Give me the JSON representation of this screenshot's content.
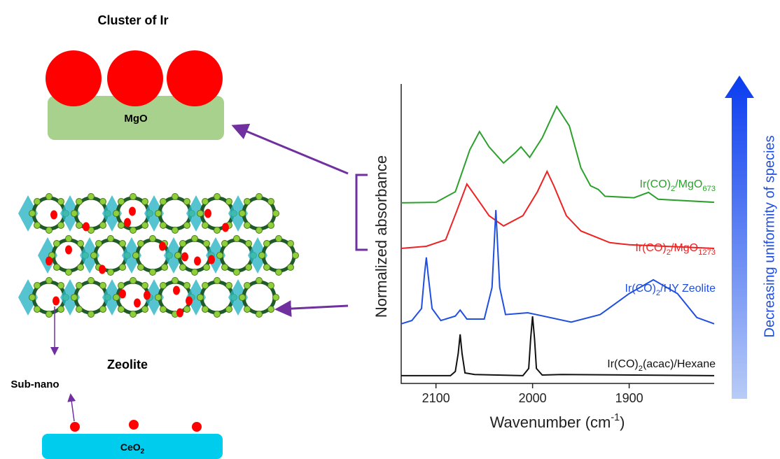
{
  "diagram": {
    "cluster_title": "Cluster of Ir",
    "mgo_label": "MgO",
    "zeolite_label": "Zeolite",
    "subnano_label": "Sub-nano",
    "ceo2_label_parts": [
      "CeO",
      "2"
    ],
    "trend_label": "Decreasing uniformity of species"
  },
  "chart_data": {
    "type": "line",
    "y_label": "Normalized absorbance",
    "x_label_parts": [
      "Wavenumber (cm",
      "-1",
      ")"
    ],
    "xlim": [
      2136,
      1812
    ],
    "xticks": [
      2100,
      2000,
      1900
    ],
    "ylim": [
      0,
      1
    ],
    "series": [
      {
        "label_parts": [
          "Ir(CO)",
          "2",
          "/MgO",
          "673"
        ],
        "color": "#2ca02c",
        "x": [
          2136,
          2100,
          2080,
          2065,
          2055,
          2045,
          2030,
          2018,
          2012,
          2003,
          1990,
          1975,
          1962,
          1950,
          1940,
          1932,
          1925,
          1895,
          1880,
          1870,
          1812
        ],
        "values": [
          0.603,
          0.605,
          0.64,
          0.78,
          0.841,
          0.79,
          0.736,
          0.77,
          0.79,
          0.755,
          0.82,
          0.925,
          0.86,
          0.72,
          0.66,
          0.648,
          0.625,
          0.62,
          0.638,
          0.615,
          0.605
        ]
      },
      {
        "label_parts": [
          "Ir(CO)",
          "2",
          "/MgO",
          "1273"
        ],
        "color": "#ee2222",
        "x": [
          2136,
          2110,
          2090,
          2078,
          2068,
          2058,
          2045,
          2030,
          2010,
          1995,
          1985,
          1978,
          1965,
          1950,
          1920,
          1900,
          1812
        ],
        "values": [
          0.451,
          0.458,
          0.48,
          0.58,
          0.666,
          0.62,
          0.56,
          0.526,
          0.56,
          0.64,
          0.708,
          0.66,
          0.56,
          0.509,
          0.47,
          0.463,
          0.451
        ]
      },
      {
        "label_parts": [
          "Ir(CO)",
          "2",
          "/HY Zeolite"
        ],
        "color": "#1f4fe0",
        "x": [
          2136,
          2125,
          2115,
          2112,
          2110,
          2108,
          2104,
          2095,
          2080,
          2075,
          2068,
          2050,
          2042,
          2038,
          2034,
          2028,
          2005,
          1960,
          1930,
          1900,
          1875,
          1850,
          1830,
          1812
        ],
        "values": [
          0.199,
          0.21,
          0.25,
          0.36,
          0.421,
          0.36,
          0.25,
          0.21,
          0.225,
          0.245,
          0.215,
          0.215,
          0.32,
          0.579,
          0.32,
          0.23,
          0.236,
          0.205,
          0.23,
          0.3,
          0.346,
          0.3,
          0.22,
          0.199
        ]
      },
      {
        "label_parts": [
          "Ir(CO)",
          "2",
          "(acac)/Hexane"
        ],
        "color": "#111111",
        "x": [
          2136,
          2085,
          2080,
          2077,
          2075,
          2073,
          2070,
          2060,
          2010,
          2004,
          2002,
          2000,
          1998,
          1996,
          1990,
          1970,
          1812
        ],
        "values": [
          0.026,
          0.026,
          0.04,
          0.1,
          0.164,
          0.1,
          0.035,
          0.03,
          0.026,
          0.05,
          0.15,
          0.224,
          0.15,
          0.05,
          0.028,
          0.03,
          0.026
        ]
      }
    ]
  }
}
